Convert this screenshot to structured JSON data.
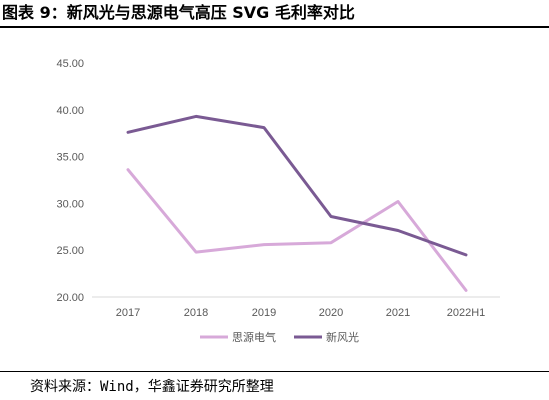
{
  "title": "图表 9：新风光与思源电气高压 SVG 毛利率对比",
  "source": "资料来源：Wind，华鑫证券研究所整理",
  "chart_data": {
    "type": "line",
    "categories": [
      "2017",
      "2018",
      "2019",
      "2020",
      "2021",
      "2022H1"
    ],
    "ylim": [
      20,
      45
    ],
    "yticks": [
      "20.00",
      "25.00",
      "30.00",
      "35.00",
      "40.00",
      "45.00"
    ],
    "grid": false,
    "legend_position": "bottom",
    "series": [
      {
        "name": "思源电气",
        "color": "#d7a9d9",
        "values": [
          33.6,
          24.8,
          25.6,
          25.8,
          30.2,
          20.7
        ]
      },
      {
        "name": "新风光",
        "color": "#7a5a93",
        "values": [
          37.6,
          39.3,
          38.1,
          28.6,
          27.1,
          24.5
        ]
      }
    ]
  }
}
